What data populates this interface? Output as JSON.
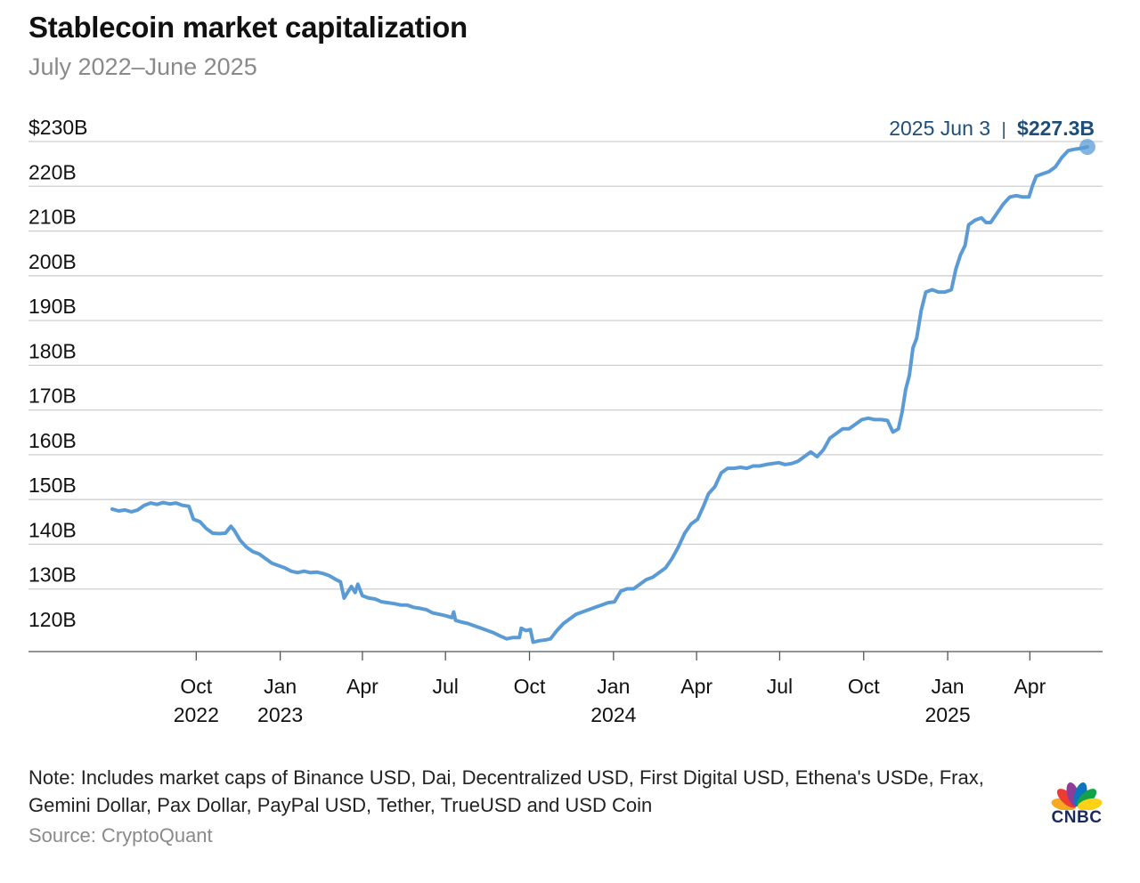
{
  "header": {
    "title": "Stablecoin market capitalization",
    "subtitle": "July 2022–June 2025"
  },
  "chart_data": {
    "type": "line",
    "y_tick_labels": [
      "120B",
      "130B",
      "140B",
      "150B",
      "160B",
      "170B",
      "180B",
      "190B",
      "200B",
      "210B",
      "220B",
      "$230B"
    ],
    "y_ticks": [
      120,
      130,
      140,
      150,
      160,
      170,
      180,
      190,
      200,
      210,
      220,
      230
    ],
    "ylim": [
      120,
      230
    ],
    "x_range": [
      "2022-07-01",
      "2025-06-06"
    ],
    "x_ticks": [
      {
        "date": "2022-10-01",
        "line1": "Oct",
        "line2": "2022"
      },
      {
        "date": "2023-01-01",
        "line1": "Jan",
        "line2": "2023"
      },
      {
        "date": "2023-04-01",
        "line1": "Apr",
        "line2": ""
      },
      {
        "date": "2023-07-01",
        "line1": "Jul",
        "line2": ""
      },
      {
        "date": "2023-10-01",
        "line1": "Oct",
        "line2": ""
      },
      {
        "date": "2024-01-01",
        "line1": "Jan",
        "line2": "2024"
      },
      {
        "date": "2024-04-01",
        "line1": "Apr",
        "line2": ""
      },
      {
        "date": "2024-07-01",
        "line1": "Jul",
        "line2": ""
      },
      {
        "date": "2024-10-01",
        "line1": "Oct",
        "line2": ""
      },
      {
        "date": "2025-01-01",
        "line1": "Jan",
        "line2": "2025"
      },
      {
        "date": "2025-04-01",
        "line1": "Apr",
        "line2": ""
      }
    ],
    "grid": true,
    "line_color": "#5b9bd5",
    "callout": {
      "date_label": "2025 Jun 3",
      "separator": "|",
      "value_label": "$227.3B",
      "color": "#1f4e79"
    },
    "series": [
      {
        "points": [
          [
            "2022-07-01",
            149.2
          ],
          [
            "2022-07-08",
            148.8
          ],
          [
            "2022-07-15",
            149.0
          ],
          [
            "2022-07-22",
            148.6
          ],
          [
            "2022-07-29",
            149.0
          ],
          [
            "2022-08-05",
            150.0
          ],
          [
            "2022-08-12",
            150.5
          ],
          [
            "2022-08-19",
            150.2
          ],
          [
            "2022-08-26",
            150.6
          ],
          [
            "2022-09-02",
            150.3
          ],
          [
            "2022-09-09",
            150.5
          ],
          [
            "2022-09-16",
            150.0
          ],
          [
            "2022-09-23",
            149.8
          ],
          [
            "2022-09-28",
            147.0
          ],
          [
            "2022-10-05",
            146.5
          ],
          [
            "2022-10-12",
            145.0
          ],
          [
            "2022-10-19",
            144.0
          ],
          [
            "2022-10-26",
            143.9
          ],
          [
            "2022-11-02",
            144.0
          ],
          [
            "2022-11-08",
            145.5
          ],
          [
            "2022-11-12",
            144.5
          ],
          [
            "2022-11-18",
            142.5
          ],
          [
            "2022-11-25",
            141.0
          ],
          [
            "2022-12-02",
            140.0
          ],
          [
            "2022-12-09",
            139.5
          ],
          [
            "2022-12-16",
            138.5
          ],
          [
            "2022-12-23",
            137.5
          ],
          [
            "2022-12-30",
            137.0
          ],
          [
            "2023-01-06",
            136.5
          ],
          [
            "2023-01-13",
            135.8
          ],
          [
            "2023-01-20",
            135.5
          ],
          [
            "2023-01-27",
            135.8
          ],
          [
            "2023-02-03",
            135.5
          ],
          [
            "2023-02-10",
            135.6
          ],
          [
            "2023-02-17",
            135.3
          ],
          [
            "2023-02-24",
            134.8
          ],
          [
            "2023-03-03",
            134.0
          ],
          [
            "2023-03-08",
            133.5
          ],
          [
            "2023-03-12",
            130.0
          ],
          [
            "2023-03-15",
            131.0
          ],
          [
            "2023-03-20",
            132.5
          ],
          [
            "2023-03-24",
            131.2
          ],
          [
            "2023-03-27",
            133.0
          ],
          [
            "2023-04-01",
            130.5
          ],
          [
            "2023-04-08",
            130.0
          ],
          [
            "2023-04-15",
            129.8
          ],
          [
            "2023-04-22",
            129.2
          ],
          [
            "2023-04-29",
            129.0
          ],
          [
            "2023-05-06",
            128.8
          ],
          [
            "2023-05-13",
            128.5
          ],
          [
            "2023-05-20",
            128.5
          ],
          [
            "2023-05-27",
            128.0
          ],
          [
            "2023-06-03",
            127.8
          ],
          [
            "2023-06-10",
            127.5
          ],
          [
            "2023-06-17",
            126.8
          ],
          [
            "2023-06-24",
            126.5
          ],
          [
            "2023-07-01",
            126.2
          ],
          [
            "2023-07-08",
            125.8
          ],
          [
            "2023-07-10",
            127.0
          ],
          [
            "2023-07-12",
            125.2
          ],
          [
            "2023-07-19",
            124.8
          ],
          [
            "2023-07-26",
            124.5
          ],
          [
            "2023-08-02",
            124.0
          ],
          [
            "2023-08-09",
            123.5
          ],
          [
            "2023-08-16",
            123.0
          ],
          [
            "2023-08-23",
            122.5
          ],
          [
            "2023-08-30",
            121.8
          ],
          [
            "2023-09-06",
            121.2
          ],
          [
            "2023-09-13",
            121.5
          ],
          [
            "2023-09-20",
            121.5
          ],
          [
            "2023-09-22",
            123.5
          ],
          [
            "2023-09-27",
            123.0
          ],
          [
            "2023-10-02",
            123.2
          ],
          [
            "2023-10-05",
            120.5
          ],
          [
            "2023-10-12",
            120.8
          ],
          [
            "2023-10-19",
            121.0
          ],
          [
            "2023-10-24",
            121.2
          ],
          [
            "2023-10-31",
            123.0
          ],
          [
            "2023-11-07",
            124.5
          ],
          [
            "2023-11-14",
            125.5
          ],
          [
            "2023-11-21",
            126.5
          ],
          [
            "2023-11-28",
            127.0
          ],
          [
            "2023-12-05",
            127.5
          ],
          [
            "2023-12-12",
            128.0
          ],
          [
            "2023-12-19",
            128.5
          ],
          [
            "2023-12-26",
            129.0
          ],
          [
            "2024-01-02",
            129.2
          ],
          [
            "2024-01-09",
            131.5
          ],
          [
            "2024-01-16",
            132.0
          ],
          [
            "2024-01-23",
            132.0
          ],
          [
            "2024-01-30",
            133.0
          ],
          [
            "2024-02-06",
            134.0
          ],
          [
            "2024-02-13",
            134.5
          ],
          [
            "2024-02-20",
            135.5
          ],
          [
            "2024-02-27",
            136.5
          ],
          [
            "2024-03-05",
            138.5
          ],
          [
            "2024-03-12",
            141.0
          ],
          [
            "2024-03-19",
            144.0
          ],
          [
            "2024-03-26",
            146.0
          ],
          [
            "2024-04-02",
            147.0
          ],
          [
            "2024-04-09",
            150.0
          ],
          [
            "2024-04-14",
            152.5
          ],
          [
            "2024-04-21",
            154.0
          ],
          [
            "2024-04-28",
            157.0
          ],
          [
            "2024-05-05",
            158.0
          ],
          [
            "2024-05-12",
            158.0
          ],
          [
            "2024-05-19",
            158.2
          ],
          [
            "2024-05-26",
            158.0
          ],
          [
            "2024-06-02",
            158.5
          ],
          [
            "2024-06-09",
            158.5
          ],
          [
            "2024-06-16",
            158.8
          ],
          [
            "2024-06-23",
            159.0
          ],
          [
            "2024-06-30",
            159.2
          ],
          [
            "2024-07-07",
            158.8
          ],
          [
            "2024-07-14",
            159.0
          ],
          [
            "2024-07-21",
            159.5
          ],
          [
            "2024-07-28",
            160.5
          ],
          [
            "2024-08-04",
            161.5
          ],
          [
            "2024-08-11",
            160.5
          ],
          [
            "2024-08-18",
            162.0
          ],
          [
            "2024-08-25",
            164.5
          ],
          [
            "2024-09-01",
            165.5
          ],
          [
            "2024-09-08",
            166.5
          ],
          [
            "2024-09-15",
            166.5
          ],
          [
            "2024-09-22",
            167.5
          ],
          [
            "2024-09-29",
            168.5
          ],
          [
            "2024-10-06",
            168.8
          ],
          [
            "2024-10-13",
            168.5
          ],
          [
            "2024-10-20",
            168.5
          ],
          [
            "2024-10-27",
            168.3
          ],
          [
            "2024-11-02",
            165.8
          ],
          [
            "2024-11-08",
            166.5
          ],
          [
            "2024-11-12",
            170.0
          ],
          [
            "2024-11-16",
            175.0
          ],
          [
            "2024-11-20",
            178.0
          ],
          [
            "2024-11-24",
            184.0
          ],
          [
            "2024-11-28",
            186.0
          ],
          [
            "2024-12-03",
            192.0
          ],
          [
            "2024-12-08",
            196.0
          ],
          [
            "2024-12-15",
            196.5
          ],
          [
            "2024-12-22",
            196.0
          ],
          [
            "2024-12-29",
            196.0
          ],
          [
            "2025-01-05",
            196.5
          ],
          [
            "2025-01-10",
            201.0
          ],
          [
            "2025-01-15",
            204.0
          ],
          [
            "2025-01-20",
            206.0
          ],
          [
            "2025-01-24",
            210.5
          ],
          [
            "2025-01-31",
            211.5
          ],
          [
            "2025-02-07",
            212.0
          ],
          [
            "2025-02-12",
            211.0
          ],
          [
            "2025-02-17",
            211.0
          ],
          [
            "2025-02-24",
            213.0
          ],
          [
            "2025-03-03",
            215.0
          ],
          [
            "2025-03-10",
            216.5
          ],
          [
            "2025-03-17",
            216.8
          ],
          [
            "2025-03-24",
            216.5
          ],
          [
            "2025-03-31",
            216.5
          ],
          [
            "2025-04-04",
            219.0
          ],
          [
            "2025-04-08",
            221.0
          ],
          [
            "2025-04-15",
            221.5
          ],
          [
            "2025-04-22",
            222.0
          ],
          [
            "2025-04-29",
            223.0
          ],
          [
            "2025-05-06",
            225.0
          ],
          [
            "2025-05-13",
            226.5
          ],
          [
            "2025-05-20",
            226.8
          ],
          [
            "2025-05-27",
            227.0
          ],
          [
            "2025-06-03",
            227.3
          ]
        ]
      }
    ]
  },
  "footer": {
    "note": "Note: Includes market caps of Binance USD, Dai, Decentralized USD, First Digital USD, Ethena's USDe, Frax, Gemini Dollar, Pax Dollar, PayPal USD, Tether, TrueUSD and USD Coin",
    "source": "Source: CryptoQuant",
    "logo_text": "CNBC"
  },
  "colors": {
    "peacock": [
      "#f7a823",
      "#ee3b31",
      "#8d3d97",
      "#0a76bd",
      "#13a24a",
      "#fcd116"
    ]
  }
}
